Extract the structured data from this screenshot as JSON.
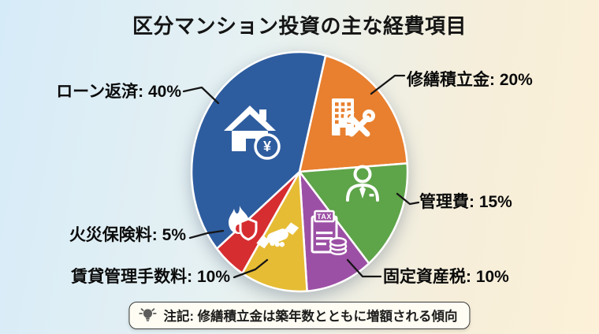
{
  "title": "区分マンション投資の主な経費項目",
  "background": {
    "gradient_left": "#d6ebf8",
    "gradient_right": "#fcf1d8"
  },
  "callouts": {
    "loan": "ローン返済: 40%",
    "repair_reserve": "修繕積立金: 20%",
    "management_fee": "管理費: 15%",
    "property_tax": "固定資産税: 10%",
    "rental_management_fee": "賃貸管理手数料: 10%",
    "fire_insurance": "火災保険料: 5%"
  },
  "note": {
    "icon": "lightbulb-icon",
    "text": "注記: 修繕積立金は築年数とともに増額される傾向"
  },
  "chart_data": {
    "type": "pie",
    "title": "区分マンション投資の主な経費項目",
    "unit": "%",
    "direction": "clockwise",
    "start_angle_deg": 14,
    "legend_position": "callout-labels",
    "segments": [
      {
        "key": "repair-reserve",
        "label": "修繕積立金",
        "value": 20,
        "color": "#e8802f",
        "icon": "building-tools-icon"
      },
      {
        "key": "management-fee",
        "label": "管理費",
        "value": 15,
        "color": "#5ea449",
        "icon": "businessman-icon"
      },
      {
        "key": "property-tax",
        "label": "固定資産税",
        "value": 10,
        "color": "#9c50a5",
        "icon": "tax-document-coins-icon"
      },
      {
        "key": "rental-management-fee",
        "label": "賃貸管理手数料",
        "value": 10,
        "color": "#e6bc35",
        "icon": "handshake-icon"
      },
      {
        "key": "fire-insurance",
        "label": "火災保険料",
        "value": 5,
        "color": "#d62d30",
        "icon": "flame-shield-icon"
      },
      {
        "key": "loan-repayment",
        "label": "ローン返済",
        "value": 40,
        "color": "#2e5d9f",
        "icon": "house-yen-icon"
      }
    ],
    "annotation": "注記: 修繕積立金は築年数とともに増額される傾向"
  }
}
